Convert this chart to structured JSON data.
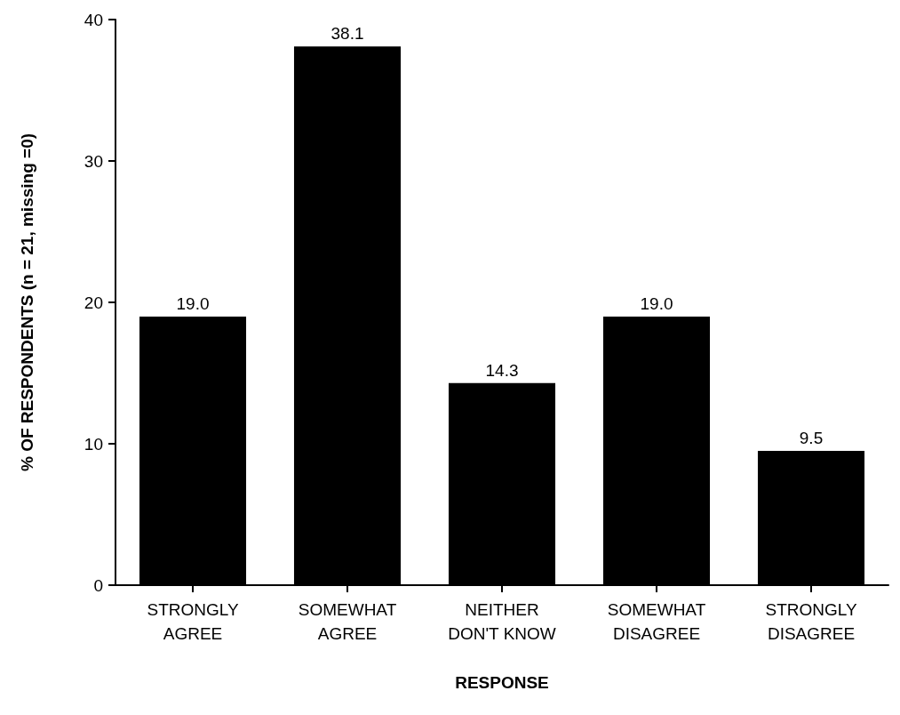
{
  "chart_data": {
    "type": "bar",
    "xlabel": "RESPONSE",
    "ylabel": "% OF RESPONDENTS (n = 21, missing =0)",
    "categories": [
      "STRONGLY\nAGREE",
      "SOMEWHAT\nAGREE",
      "NEITHER\nDON'T KNOW",
      "SOMEWHAT\nDISAGREE",
      "STRONGLY\nDISAGREE"
    ],
    "values": [
      19.0,
      38.1,
      14.3,
      19.0,
      9.5
    ],
    "value_labels": [
      "19.0",
      "38.1",
      "14.3",
      "19.0",
      "9.5"
    ],
    "color": "#000000",
    "ylim": [
      0,
      40
    ],
    "yticks": [
      0,
      10,
      20,
      30,
      40
    ],
    "grid": false
  }
}
